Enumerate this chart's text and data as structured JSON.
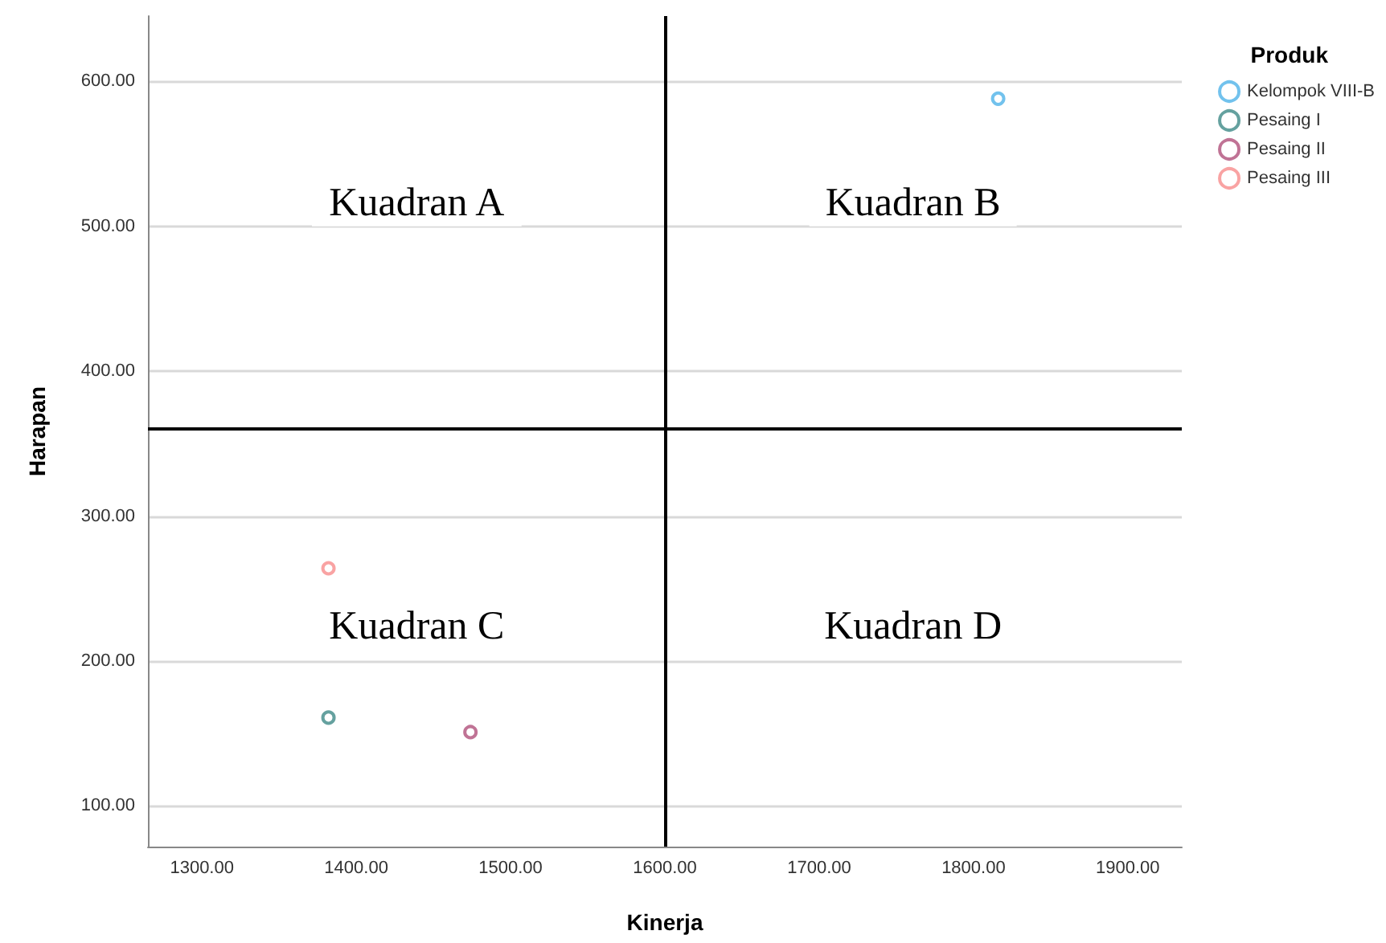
{
  "chart_data": {
    "type": "scatter",
    "xlabel": "Kinerja",
    "ylabel": "Harapan",
    "legend_title": "Produk",
    "legend": "top right",
    "grid": "y",
    "marker": "circle",
    "xlim": [
      1265,
      1935
    ],
    "ylim": [
      72,
      645
    ],
    "xticks": [
      {
        "value": 1300,
        "label": "1300.00"
      },
      {
        "value": 1400,
        "label": "1400.00"
      },
      {
        "value": 1500,
        "label": "1500.00"
      },
      {
        "value": 1600,
        "label": "1600.00"
      },
      {
        "value": 1700,
        "label": "1700.00"
      },
      {
        "value": 1800,
        "label": "1800.00"
      },
      {
        "value": 1900,
        "label": "1900.00"
      }
    ],
    "yticks": [
      {
        "value": 100,
        "label": "100.00"
      },
      {
        "value": 200,
        "label": "200.00"
      },
      {
        "value": 300,
        "label": "300.00"
      },
      {
        "value": 400,
        "label": "400.00"
      },
      {
        "value": 500,
        "label": "500.00"
      },
      {
        "value": 600,
        "label": "600.00"
      }
    ],
    "series": [
      {
        "name": "Kelompok VIII-B",
        "color": "#4fb3e8",
        "x": [
          1816
        ],
        "values": [
          588
        ]
      },
      {
        "name": "Pesaing I",
        "color": "#3e8a87",
        "x": [
          1382
        ],
        "values": [
          161
        ]
      },
      {
        "name": "Pesaing II",
        "color": "#b0507a",
        "x": [
          1474
        ],
        "values": [
          151
        ]
      },
      {
        "name": "Pesaing III",
        "color": "#f88c8c",
        "x": [
          1382
        ],
        "values": [
          264
        ]
      }
    ],
    "ref_lines": [
      {
        "axis": "x",
        "value": 1600,
        "color": "#000000"
      },
      {
        "axis": "y",
        "value": 360,
        "color": "#000000"
      }
    ],
    "annotations": [
      "Kuadran A",
      "Kuadran B",
      "Kuadran C",
      "Kuadran D"
    ]
  }
}
